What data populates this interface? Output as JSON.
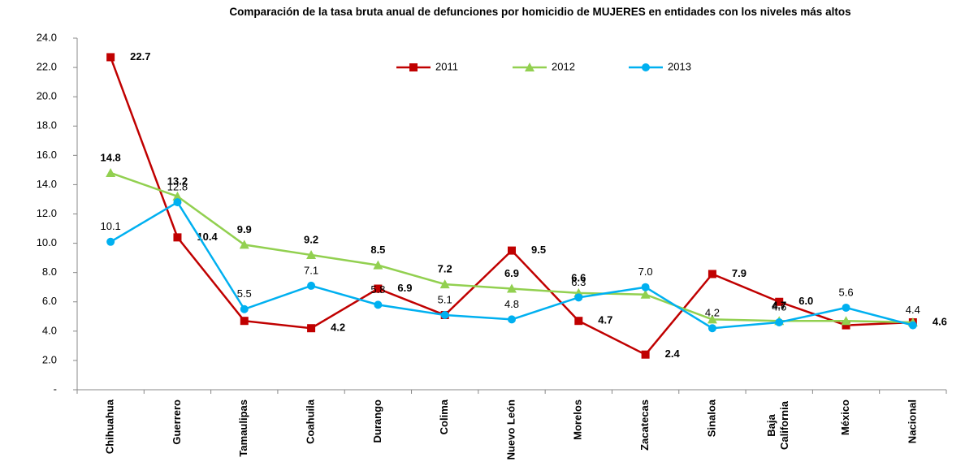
{
  "chart_data": {
    "type": "line",
    "title": "Comparación de la tasa bruta anual de defunciones por homicidio de MUJERES en entidades con los niveles más altos",
    "categories": [
      "Chihuahua",
      "Guerrero",
      "Tamaulipas",
      "Coahuila",
      "Durango",
      "Colima",
      "Nuevo León",
      "Morelos",
      "Zacatecas",
      "Sinaloa",
      "Baja California",
      "México",
      "Nacional"
    ],
    "series": [
      {
        "name": "2011",
        "color": "#c00000",
        "marker": "square",
        "values": [
          22.7,
          10.4,
          4.7,
          4.2,
          6.9,
          5.1,
          9.5,
          4.7,
          2.4,
          7.9,
          6.0,
          4.4,
          4.6
        ],
        "value_labels": [
          "22.7",
          "10.4",
          null,
          "4.2",
          "6.9",
          null,
          "9.5",
          "4.7",
          "2.4",
          "7.9",
          "6.0",
          null,
          "4.6"
        ]
      },
      {
        "name": "2012",
        "color": "#92d050",
        "marker": "triangle",
        "values": [
          14.8,
          13.2,
          9.9,
          9.2,
          8.5,
          7.2,
          6.9,
          6.6,
          6.5,
          4.8,
          4.7,
          4.7,
          4.6
        ],
        "value_labels": [
          "14.8",
          "13.2",
          "9.9",
          "9.2",
          "8.5",
          "7.2",
          "6.9",
          "6.6",
          null,
          null,
          "4.7",
          null,
          null
        ]
      },
      {
        "name": "2013",
        "color": "#00b0f0",
        "marker": "circle",
        "values": [
          10.1,
          12.8,
          5.5,
          7.1,
          5.8,
          5.1,
          4.8,
          6.3,
          7.0,
          4.2,
          4.6,
          5.6,
          4.4
        ],
        "value_labels": [
          "10.1",
          "12.8",
          "5.5",
          "7.1",
          "5.8",
          "5.1",
          "4.8",
          "6.3",
          "7.0",
          "4.2",
          "4.6",
          "5.6",
          "4.4"
        ]
      }
    ],
    "ylim": [
      0,
      24
    ],
    "yticks": [
      {
        "value": 0,
        "label": "-"
      },
      {
        "value": 2,
        "label": "2.0"
      },
      {
        "value": 4,
        "label": "4.0"
      },
      {
        "value": 6,
        "label": "6.0"
      },
      {
        "value": 8,
        "label": "8.0"
      },
      {
        "value": 10,
        "label": "10.0"
      },
      {
        "value": 12,
        "label": "12.0"
      },
      {
        "value": 14,
        "label": "14.0"
      },
      {
        "value": 16,
        "label": "16.0"
      },
      {
        "value": 18,
        "label": "18.0"
      },
      {
        "value": 20,
        "label": "20.0"
      },
      {
        "value": 22,
        "label": "22.0"
      },
      {
        "value": 24,
        "label": "24.0"
      }
    ],
    "legend": "top"
  }
}
